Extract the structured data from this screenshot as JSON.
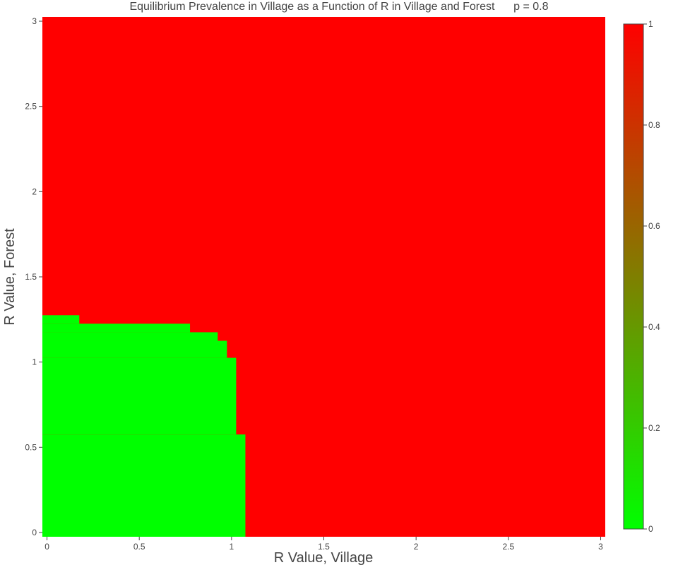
{
  "chart_data": {
    "type": "heatmap",
    "title": "Equilibrium Prevalence in Village as a Function of R in Village and Forest      p = 0.8",
    "xlabel": "R Value, Village",
    "ylabel": "R Value, Forest",
    "xlim": [
      -0.025,
      3.025
    ],
    "ylim": [
      -0.025,
      3.025
    ],
    "x_ticks": [
      0,
      0.5,
      1,
      1.5,
      2,
      2.5,
      3
    ],
    "x_tick_labels": [
      "0",
      "0.5",
      "1",
      "1.5",
      "2",
      "2.5",
      "3"
    ],
    "y_ticks": [
      0,
      0.5,
      1,
      1.5,
      2,
      2.5,
      3
    ],
    "y_tick_labels": [
      "0",
      "0.5",
      "1",
      "1.5",
      "2",
      "2.5",
      "3"
    ],
    "grid": false,
    "background_value": 1,
    "regions_value_0": [
      {
        "x": [
          -0.025,
          1.075
        ],
        "y": [
          -0.025,
          0.575
        ]
      },
      {
        "x": [
          -0.025,
          1.025
        ],
        "y": [
          0.575,
          1.025
        ]
      },
      {
        "x": [
          -0.025,
          0.975
        ],
        "y": [
          1.025,
          1.125
        ]
      },
      {
        "x": [
          -0.025,
          0.925
        ],
        "y": [
          1.125,
          1.175
        ]
      },
      {
        "x": [
          -0.025,
          0.775
        ],
        "y": [
          1.175,
          1.225
        ]
      },
      {
        "x": [
          -0.025,
          0.175
        ],
        "y": [
          1.225,
          1.275
        ]
      }
    ],
    "colorscale": [
      [
        0,
        "#00ff00"
      ],
      [
        1,
        "#ff0000"
      ]
    ],
    "colorbar": {
      "range": [
        0,
        1
      ],
      "ticks": [
        0,
        0.2,
        0.4,
        0.6,
        0.8,
        1
      ],
      "tick_labels": [
        "0",
        "0.2",
        "0.4",
        "0.6",
        "0.8",
        "1"
      ]
    }
  }
}
